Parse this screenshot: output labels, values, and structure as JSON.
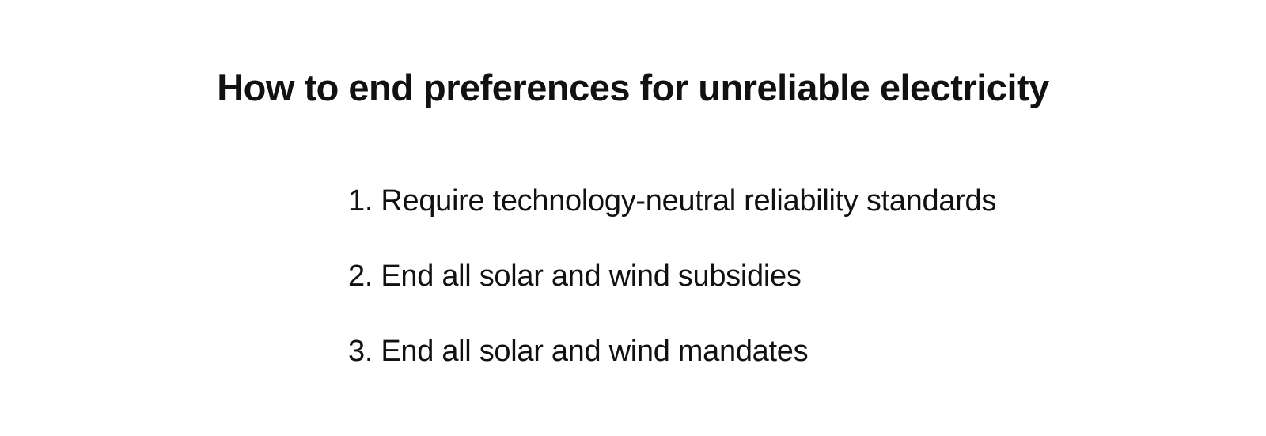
{
  "slide": {
    "title": "How to end preferences for unreliable electricity",
    "items": [
      {
        "number": "1.",
        "text": "Require technology-neutral reliability standards"
      },
      {
        "number": "2.",
        "text": "End all solar and wind subsidies"
      },
      {
        "number": "3.",
        "text": "End all solar and wind mandates"
      }
    ],
    "colors": {
      "background": "#ffffff",
      "text": "#111111"
    }
  }
}
